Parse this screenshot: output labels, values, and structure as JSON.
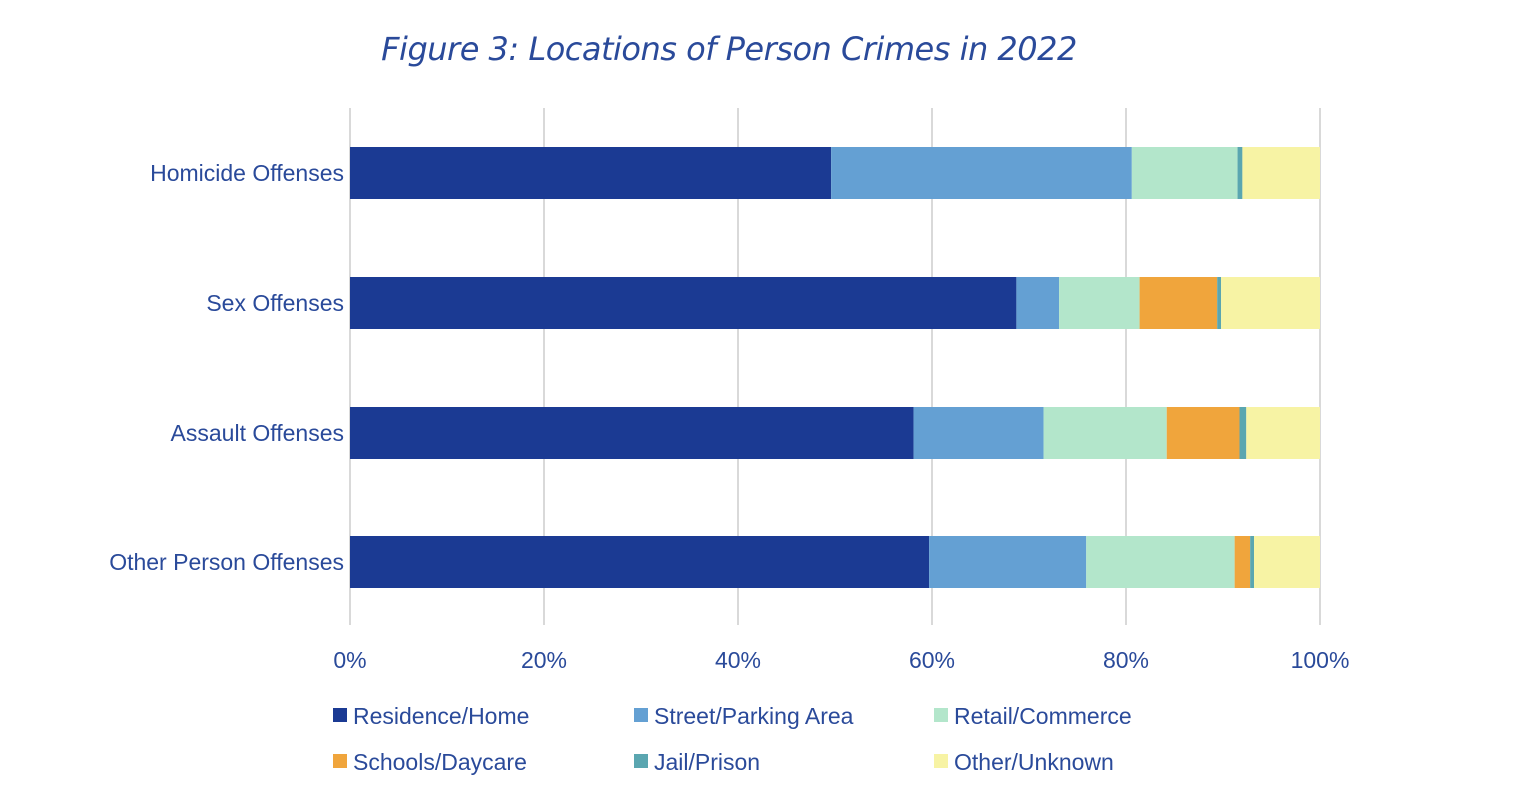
{
  "chart_data": {
    "type": "bar",
    "orientation": "horizontal",
    "stacked": true,
    "title": "Figure 3: Locations of Person Crimes in 2022",
    "xlabel": "",
    "ylabel": "",
    "xlim": [
      0,
      100
    ],
    "x_ticks": [
      "0%",
      "20%",
      "40%",
      "60%",
      "80%",
      "100%"
    ],
    "grid": true,
    "legend_position": "bottom",
    "categories": [
      "Homicide Offenses",
      "Sex Offenses",
      "Assault Offenses",
      "Other Person Offenses"
    ],
    "series": [
      {
        "name": "Residence/Home",
        "color": "#1b3a93",
        "values": [
          49.6,
          68.7,
          58.1,
          59.7
        ]
      },
      {
        "name": "Street/Parking Area",
        "color": "#64a0d3",
        "values": [
          31.0,
          4.4,
          13.4,
          16.2
        ]
      },
      {
        "name": "Retail/Commerce",
        "color": "#b3e6cb",
        "values": [
          10.9,
          8.3,
          12.7,
          15.3
        ]
      },
      {
        "name": "Schools/Daycare",
        "color": "#f0a53c",
        "values": [
          0.0,
          8.0,
          7.5,
          1.6
        ]
      },
      {
        "name": "Jail/Prison",
        "color": "#5aa6b0",
        "values": [
          0.5,
          0.4,
          0.7,
          0.4
        ]
      },
      {
        "name": "Other/Unknown",
        "color": "#f7f3a4",
        "values": [
          8.0,
          10.2,
          7.6,
          6.8
        ]
      }
    ]
  }
}
